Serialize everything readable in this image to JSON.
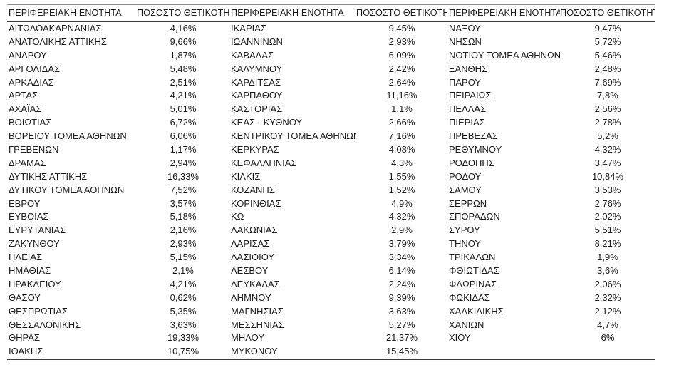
{
  "table": {
    "region_header": "ΠΕΡΙΦΕΡΕΙΑΚΗ ΕΝΟΤΗΤΑ",
    "percent_header": "ΠΟΣΟΣΤΟ ΘΕΤΙΚΟΤΗΤΑΣ",
    "groups": [
      {
        "rows": [
          {
            "region": "ΑΙΤΩΛΟΑΚΑΡΝΑΝΙΑΣ",
            "percent": "4,16%"
          },
          {
            "region": "ΑΝΑΤΟΛΙΚΗΣ ΑΤΤΙΚΗΣ",
            "percent": "9,66%"
          },
          {
            "region": "ΑΝΔΡΟΥ",
            "percent": "1,87%"
          },
          {
            "region": "ΑΡΓΟΛΙΔΑΣ",
            "percent": "5,48%"
          },
          {
            "region": "ΑΡΚΑΔΙΑΣ",
            "percent": "2,51%"
          },
          {
            "region": "ΑΡΤΑΣ",
            "percent": "4,21%"
          },
          {
            "region": "ΑΧΑΪΑΣ",
            "percent": "5,01%"
          },
          {
            "region": "ΒΟΙΩΤΙΑΣ",
            "percent": "6,72%"
          },
          {
            "region": "ΒΟΡΕΙΟΥ ΤΟΜΕΑ ΑΘΗΝΩΝ",
            "percent": "6,06%"
          },
          {
            "region": "ΓΡΕΒΕΝΩΝ",
            "percent": "1,17%"
          },
          {
            "region": "ΔΡΑΜΑΣ",
            "percent": "2,94%"
          },
          {
            "region": "ΔΥΤΙΚΗΣ ΑΤΤΙΚΗΣ",
            "percent": "16,33%"
          },
          {
            "region": "ΔΥΤΙΚΟΥ ΤΟΜΕΑ ΑΘΗΝΩΝ",
            "percent": "7,52%"
          },
          {
            "region": "ΕΒΡΟΥ",
            "percent": "3,57%"
          },
          {
            "region": "ΕΥΒΟΙΑΣ",
            "percent": "5,18%"
          },
          {
            "region": "ΕΥΡΥΤΑΝΙΑΣ",
            "percent": "2,16%"
          },
          {
            "region": "ΖΑΚΥΝΘΟΥ",
            "percent": "2,93%"
          },
          {
            "region": "ΗΛΕΙΑΣ",
            "percent": "5,15%"
          },
          {
            "region": "ΗΜΑΘΙΑΣ",
            "percent": "2,1%"
          },
          {
            "region": "ΗΡΑΚΛΕΙΟΥ",
            "percent": "4,21%"
          },
          {
            "region": "ΘΑΣΟΥ",
            "percent": "0,62%"
          },
          {
            "region": "ΘΕΣΠΡΩΤΙΑΣ",
            "percent": "5,35%"
          },
          {
            "region": "ΘΕΣΣΑΛΟΝΙΚΗΣ",
            "percent": "3,63%"
          },
          {
            "region": "ΘΗΡΑΣ",
            "percent": "19,33%"
          },
          {
            "region": "ΙΘΑΚΗΣ",
            "percent": "10,75%"
          }
        ]
      },
      {
        "rows": [
          {
            "region": "ΙΚΑΡΙΑΣ",
            "percent": "9,45%"
          },
          {
            "region": "ΙΩΑΝΝΙΝΩΝ",
            "percent": "2,93%"
          },
          {
            "region": "ΚΑΒΑΛΑΣ",
            "percent": "6,09%"
          },
          {
            "region": "ΚΑΛΥΜΝΟΥ",
            "percent": "2,42%"
          },
          {
            "region": "ΚΑΡΔΙΤΣΑΣ",
            "percent": "2,64%"
          },
          {
            "region": "ΚΑΡΠΑΘΟΥ",
            "percent": "11,16%"
          },
          {
            "region": "ΚΑΣΤΟΡΙΑΣ",
            "percent": "1,1%"
          },
          {
            "region": "ΚΕΑΣ - ΚΥΘΝΟΥ",
            "percent": "2,66%"
          },
          {
            "region": "ΚΕΝΤΡΙΚΟΥ ΤΟΜΕΑ ΑΘΗΝΩΝ",
            "percent": "7,16%"
          },
          {
            "region": "ΚΕΡΚΥΡΑΣ",
            "percent": "4,08%"
          },
          {
            "region": "ΚΕΦΑΛΛΗΝΙΑΣ",
            "percent": "4,3%"
          },
          {
            "region": "ΚΙΛΚΙΣ",
            "percent": "1,55%"
          },
          {
            "region": "ΚΟΖΑΝΗΣ",
            "percent": "1,52%"
          },
          {
            "region": "ΚΟΡΙΝΘΙΑΣ",
            "percent": "4,9%"
          },
          {
            "region": "ΚΩ",
            "percent": "4,32%"
          },
          {
            "region": "ΛΑΚΩΝΙΑΣ",
            "percent": "2,9%"
          },
          {
            "region": "ΛΑΡΙΣΑΣ",
            "percent": "3,79%"
          },
          {
            "region": "ΛΑΣΙΘΙΟΥ",
            "percent": "3,34%"
          },
          {
            "region": "ΛΕΣΒΟΥ",
            "percent": "6,14%"
          },
          {
            "region": "ΛΕΥΚΑΔΑΣ",
            "percent": "2,24%"
          },
          {
            "region": "ΛΗΜΝΟΥ",
            "percent": "9,39%"
          },
          {
            "region": "ΜΑΓΝΗΣΙΑΣ",
            "percent": "3,63%"
          },
          {
            "region": "ΜΕΣΣΗΝΙΑΣ",
            "percent": "5,27%"
          },
          {
            "region": "ΜΗΛΟΥ",
            "percent": "21,37%"
          },
          {
            "region": "ΜΥΚΟΝΟΥ",
            "percent": "15,45%"
          }
        ]
      },
      {
        "rows": [
          {
            "region": "ΝΑΞΟΥ",
            "percent": "9,47%"
          },
          {
            "region": "ΝΗΣΩΝ",
            "percent": "5,72%"
          },
          {
            "region": "ΝΟΤΙΟΥ ΤΟΜΕΑ ΑΘΗΝΩΝ",
            "percent": "5,46%"
          },
          {
            "region": "ΞΑΝΘΗΣ",
            "percent": "2,48%"
          },
          {
            "region": "ΠΑΡΟΥ",
            "percent": "7,69%"
          },
          {
            "region": "ΠΕΙΡΑΙΩΣ",
            "percent": "7,8%"
          },
          {
            "region": "ΠΕΛΛΑΣ",
            "percent": "2,56%"
          },
          {
            "region": "ΠΙΕΡΙΑΣ",
            "percent": "2,78%"
          },
          {
            "region": "ΠΡΕΒΕΖΑΣ",
            "percent": "5,2%"
          },
          {
            "region": "ΡΕΘΥΜΝΟΥ",
            "percent": "4,32%"
          },
          {
            "region": "ΡΟΔΟΠΗΣ",
            "percent": "3,47%"
          },
          {
            "region": "ΡΟΔΟΥ",
            "percent": "10,84%"
          },
          {
            "region": "ΣΑΜΟΥ",
            "percent": "3,53%"
          },
          {
            "region": "ΣΕΡΡΩΝ",
            "percent": "2,76%"
          },
          {
            "region": "ΣΠΟΡΑΔΩΝ",
            "percent": "2,02%"
          },
          {
            "region": "ΣΥΡΟΥ",
            "percent": "5,51%"
          },
          {
            "region": "ΤΗΝΟΥ",
            "percent": "8,21%"
          },
          {
            "region": "ΤΡΙΚΑΛΩΝ",
            "percent": "1,9%"
          },
          {
            "region": "ΦΘΙΩΤΙΔΑΣ",
            "percent": "3,6%"
          },
          {
            "region": "ΦΛΩΡΙΝΑΣ",
            "percent": "2,06%"
          },
          {
            "region": "ΦΩΚΙΔΑΣ",
            "percent": "2,32%"
          },
          {
            "region": "ΧΑΛΚΙΔΙΚΗΣ",
            "percent": "2,12%"
          },
          {
            "region": "ΧΑΝΙΩΝ",
            "percent": "4,7%"
          },
          {
            "region": "ΧΙΟΥ",
            "percent": "6%"
          }
        ]
      }
    ]
  }
}
